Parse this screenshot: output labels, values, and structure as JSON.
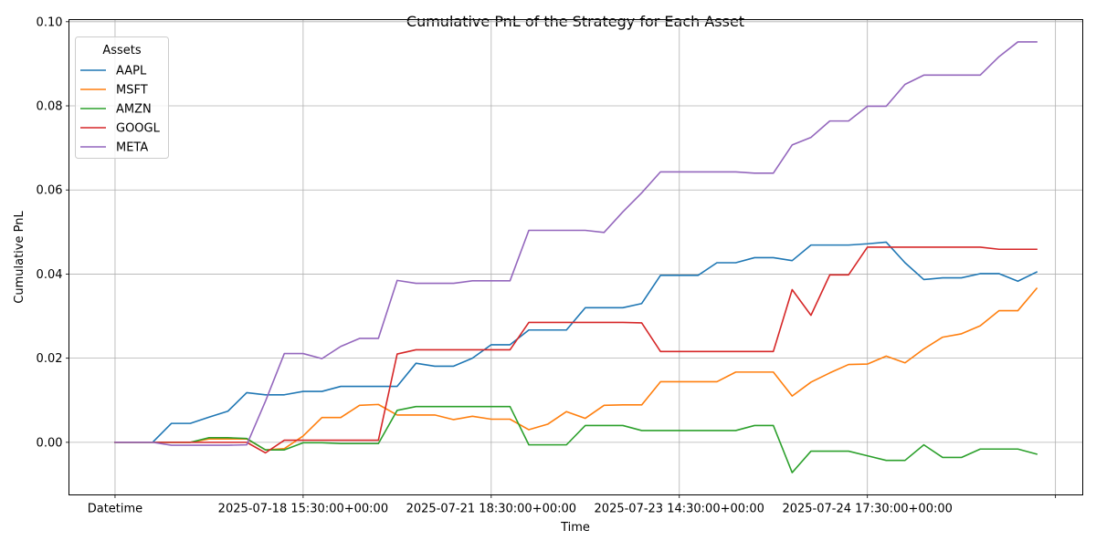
{
  "chart_data": {
    "type": "line",
    "title": "Cumulative PnL of the Strategy for Each Asset",
    "xlabel": "Time",
    "ylabel": "Cumulative PnL",
    "ylim": [
      -0.0125,
      0.1005
    ],
    "xlim": [
      -2.45,
      51.45
    ],
    "grid": true,
    "legend": {
      "title": "Assets",
      "placement": "top-left"
    },
    "x": [
      0,
      1,
      2,
      3,
      4,
      5,
      6,
      7,
      8,
      9,
      10,
      11,
      12,
      13,
      14,
      15,
      16,
      17,
      18,
      19,
      20,
      21,
      22,
      23,
      24,
      25,
      26,
      27,
      28,
      29,
      30,
      31,
      32,
      33,
      34,
      35,
      36,
      37,
      38,
      39,
      40,
      41,
      42,
      43,
      44,
      45,
      46,
      47,
      48,
      49
    ],
    "xticks": [
      {
        "x": 0,
        "label": "Datetime"
      },
      {
        "x": 10,
        "label": "2025-07-18 15:30:00+00:00"
      },
      {
        "x": 20,
        "label": "2025-07-21 18:30:00+00:00"
      },
      {
        "x": 30,
        "label": "2025-07-23 14:30:00+00:00"
      },
      {
        "x": 40,
        "label": "2025-07-24 17:30:00+00:00"
      },
      {
        "x": 50,
        "label": ""
      }
    ],
    "yticks": [
      {
        "y": 0.0,
        "label": "0.00"
      },
      {
        "y": 0.02,
        "label": "0.02"
      },
      {
        "y": 0.04,
        "label": "0.04"
      },
      {
        "y": 0.06,
        "label": "0.06"
      },
      {
        "y": 0.08,
        "label": "0.08"
      },
      {
        "y": 0.1,
        "label": "0.10"
      }
    ],
    "series": [
      {
        "name": "AAPL",
        "color": "#1f77b4",
        "values": [
          0,
          0,
          0,
          0.0045,
          0.0045,
          0.006,
          0.0074,
          0.0118,
          0.0113,
          0.0113,
          0.0121,
          0.0121,
          0.0133,
          0.0133,
          0.0133,
          0.0133,
          0.0188,
          0.0181,
          0.0181,
          0.02,
          0.0232,
          0.0232,
          0.0267,
          0.0267,
          0.0267,
          0.032,
          0.032,
          0.032,
          0.033,
          0.0397,
          0.0397,
          0.0397,
          0.0427,
          0.0427,
          0.0439,
          0.0439,
          0.0432,
          0.0469,
          0.0469,
          0.0469,
          0.0472,
          0.0476,
          0.0427,
          0.0387,
          0.0391,
          0.0391,
          0.0401,
          0.0401,
          0.0383,
          0.0405
        ]
      },
      {
        "name": "MSFT",
        "color": "#ff7f0e",
        "values": [
          0,
          0,
          0,
          0,
          0,
          0.0008,
          0.0008,
          0.0008,
          -0.0018,
          -0.0015,
          0.0015,
          0.0059,
          0.0059,
          0.0088,
          0.009,
          0.0065,
          0.0065,
          0.0065,
          0.0054,
          0.0062,
          0.0055,
          0.0055,
          0.003,
          0.0043,
          0.0073,
          0.0057,
          0.0088,
          0.0089,
          0.0089,
          0.0144,
          0.0144,
          0.0144,
          0.0144,
          0.0167,
          0.0167,
          0.0167,
          0.011,
          0.0143,
          0.0165,
          0.0185,
          0.0186,
          0.0205,
          0.0189,
          0.0222,
          0.025,
          0.0258,
          0.0277,
          0.0313,
          0.0313,
          0.0366
        ]
      },
      {
        "name": "AMZN",
        "color": "#2ca02c",
        "values": [
          0,
          0,
          0,
          0,
          0,
          0.0011,
          0.0011,
          0.0009,
          -0.0018,
          -0.0018,
          -0.0001,
          -0.0001,
          -0.0003,
          -0.0003,
          -0.0003,
          0.0076,
          0.0085,
          0.0085,
          0.0085,
          0.0085,
          0.0085,
          0.0085,
          -0.0006,
          -0.0006,
          -0.0006,
          0.004,
          0.004,
          0.004,
          0.0028,
          0.0028,
          0.0028,
          0.0028,
          0.0028,
          0.0028,
          0.004,
          0.004,
          -0.0072,
          -0.0021,
          -0.0021,
          -0.0021,
          -0.0032,
          -0.0043,
          -0.0043,
          -0.0006,
          -0.0036,
          -0.0036,
          -0.0016,
          -0.0016,
          -0.0016,
          -0.0028
        ]
      },
      {
        "name": "GOOGL",
        "color": "#d62728",
        "values": [
          0,
          0,
          0,
          0,
          0,
          0,
          0,
          0,
          -0.0025,
          0.0005,
          0.0005,
          0.0005,
          0.0005,
          0.0005,
          0.0005,
          0.021,
          0.022,
          0.022,
          0.022,
          0.022,
          0.022,
          0.022,
          0.0285,
          0.0285,
          0.0285,
          0.0285,
          0.0285,
          0.0285,
          0.0284,
          0.0216,
          0.0216,
          0.0216,
          0.0216,
          0.0216,
          0.0216,
          0.0216,
          0.0363,
          0.0302,
          0.0398,
          0.0398,
          0.0464,
          0.0464,
          0.0464,
          0.0464,
          0.0464,
          0.0464,
          0.0464,
          0.0459,
          0.0459,
          0.0459
        ]
      },
      {
        "name": "META",
        "color": "#9467bd",
        "values": [
          0,
          0,
          0,
          -0.0007,
          -0.0007,
          -0.0007,
          -0.0007,
          -0.0006,
          0.0098,
          0.0211,
          0.0211,
          0.0199,
          0.0228,
          0.0247,
          0.0247,
          0.0385,
          0.0378,
          0.0378,
          0.0378,
          0.0384,
          0.0384,
          0.0384,
          0.0504,
          0.0504,
          0.0504,
          0.0504,
          0.0499,
          0.0548,
          0.0593,
          0.0643,
          0.0643,
          0.0643,
          0.0643,
          0.0643,
          0.064,
          0.064,
          0.0707,
          0.0725,
          0.0764,
          0.0764,
          0.0799,
          0.0799,
          0.0851,
          0.0873,
          0.0873,
          0.0873,
          0.0873,
          0.0917,
          0.0952,
          0.0952
        ]
      }
    ]
  }
}
